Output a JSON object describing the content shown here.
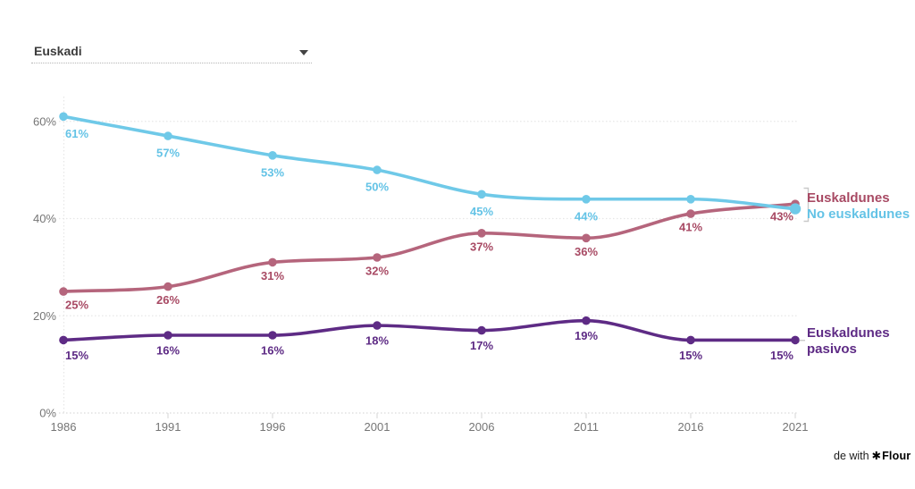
{
  "region_selector": {
    "value": "Euskadi"
  },
  "chart_data": {
    "type": "line",
    "x": [
      1986,
      1991,
      1996,
      2001,
      2006,
      2011,
      2016,
      2021
    ],
    "x_tick_labels": [
      "1986",
      "1991",
      "1996",
      "2001",
      "2006",
      "2011",
      "2016",
      "2021"
    ],
    "y_axis": {
      "tick_values": [
        0,
        20,
        40,
        60
      ],
      "tick_labels": [
        "0%",
        "20%",
        "40%",
        "60%"
      ],
      "range": [
        0,
        65
      ],
      "unit": "%"
    },
    "grid": "horizontal-dotted",
    "legend_position": "right",
    "series": [
      {
        "name": "No euskaldunes",
        "color": "#6fc9e8",
        "label_color": "#64c3e6",
        "values": [
          61,
          57,
          53,
          50,
          45,
          44,
          44,
          42
        ],
        "point_labels": [
          "61%",
          "57%",
          "53%",
          "50%",
          "45%",
          "44%",
          "",
          ""
        ]
      },
      {
        "name": "Euskaldunes",
        "color": "#b5657c",
        "label_color": "#a84a64",
        "values": [
          25,
          26,
          31,
          32,
          37,
          36,
          41,
          43
        ],
        "point_labels": [
          "25%",
          "26%",
          "31%",
          "32%",
          "37%",
          "36%",
          "41%",
          "43%"
        ]
      },
      {
        "name": "Euskaldunes pasivos",
        "color": "#5e2b85",
        "label_color": "#5e2b85",
        "values": [
          15,
          16,
          16,
          18,
          17,
          19,
          15,
          15
        ],
        "point_labels": [
          "15%",
          "16%",
          "16%",
          "18%",
          "17%",
          "19%",
          "15%",
          "15%"
        ]
      }
    ]
  },
  "attribution": {
    "prefix": "de with",
    "symbol": "✱",
    "brand": "Flour"
  }
}
